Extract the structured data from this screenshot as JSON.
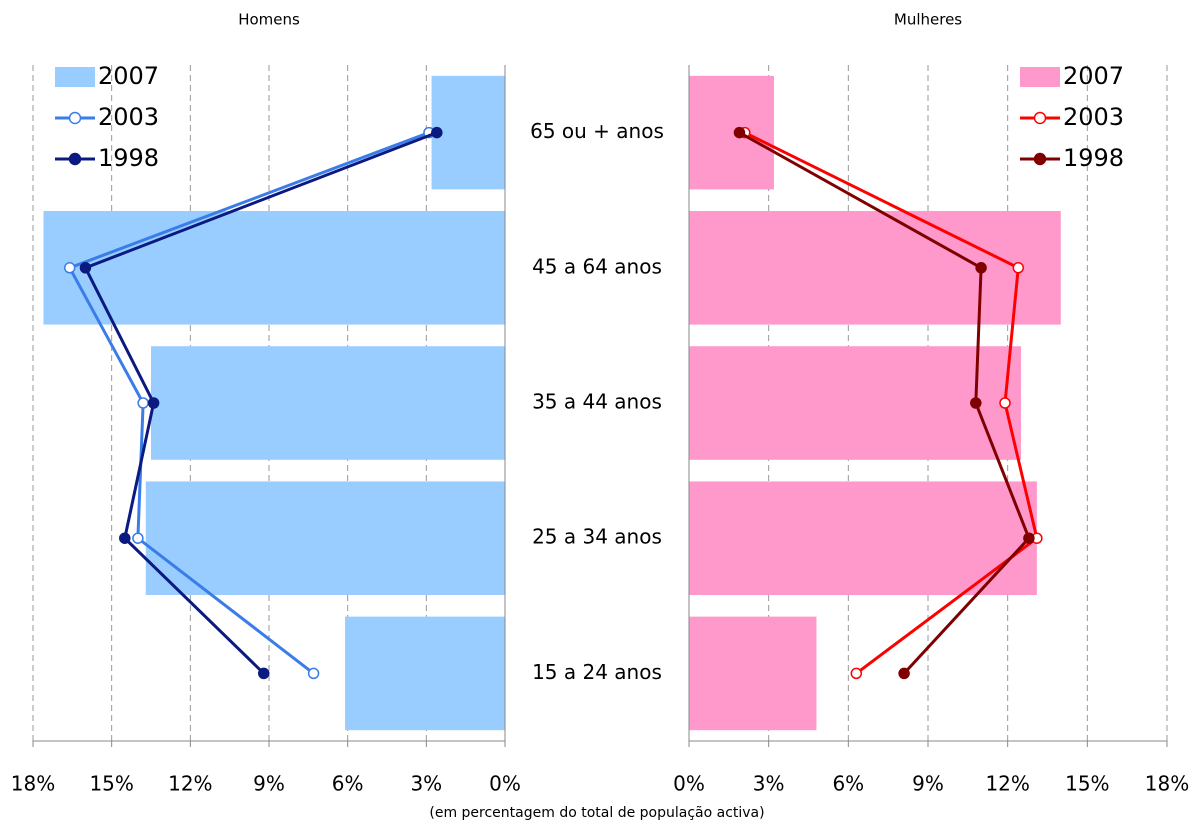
{
  "chart_data": [
    {
      "type": "bar",
      "title": "Homens",
      "x_reversed": true,
      "legend": "upper left",
      "grid": true,
      "categories": [
        "65 ou + anos",
        "45 a 64 anos",
        "35 a 44 anos",
        "25 a 34 anos",
        "15 a 24 anos"
      ],
      "series": [
        {
          "name": "2007",
          "type": "bar",
          "color": "#99ccff",
          "values": [
            2.8,
            17.6,
            13.5,
            13.7,
            6.1
          ]
        },
        {
          "name": "2003",
          "type": "line",
          "marker": "open",
          "color": "#3a7de8",
          "values": [
            2.9,
            16.6,
            13.8,
            14.0,
            7.3
          ]
        },
        {
          "name": "1998",
          "type": "line",
          "marker": "filled",
          "color": "#0a1a80",
          "values": [
            2.6,
            16.0,
            13.4,
            14.5,
            9.2
          ]
        }
      ],
      "xlim": [
        0,
        18
      ],
      "xticks": [
        {
          "value": 0,
          "label": "0%"
        },
        {
          "value": 3,
          "label": "3%"
        },
        {
          "value": 6,
          "label": "6%"
        },
        {
          "value": 9,
          "label": "9%"
        },
        {
          "value": 12,
          "label": "12%"
        },
        {
          "value": 15,
          "label": "15%"
        },
        {
          "value": 18,
          "label": "18%"
        }
      ]
    },
    {
      "type": "bar",
      "title": "Mulheres",
      "x_reversed": false,
      "legend": "upper right",
      "grid": true,
      "series": [
        {
          "name": "2007",
          "type": "bar",
          "color": "#ff99cc",
          "values": [
            3.2,
            14.0,
            12.5,
            13.1,
            4.8
          ]
        },
        {
          "name": "2003",
          "type": "line",
          "marker": "open",
          "color": "#ff0000",
          "values": [
            2.1,
            12.4,
            11.9,
            13.1,
            6.3
          ]
        },
        {
          "name": "1998",
          "type": "line",
          "marker": "filled",
          "color": "#800000",
          "values": [
            1.9,
            11.0,
            10.8,
            12.8,
            8.1
          ]
        }
      ],
      "xlim": [
        0,
        18
      ],
      "xticks": [
        {
          "value": 0,
          "label": "0%"
        },
        {
          "value": 3,
          "label": "3%"
        },
        {
          "value": 6,
          "label": "6%"
        },
        {
          "value": 9,
          "label": "9%"
        },
        {
          "value": 12,
          "label": "12%"
        },
        {
          "value": 15,
          "label": "15%"
        },
        {
          "value": 18,
          "label": "18%"
        }
      ]
    }
  ],
  "caption": "(em percentagem do total de população activa)"
}
